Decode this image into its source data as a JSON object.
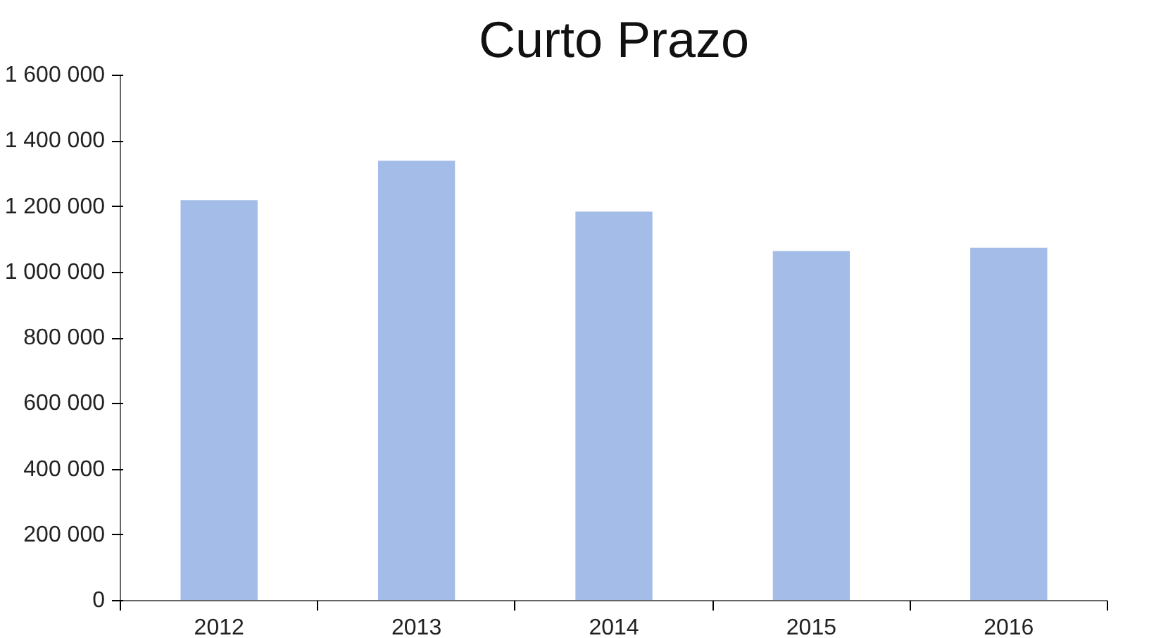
{
  "chart_data": {
    "type": "bar",
    "title": "Curto Prazo",
    "categories": [
      "2012",
      "2013",
      "2014",
      "2015",
      "2016"
    ],
    "values": [
      1220000,
      1340000,
      1185000,
      1065000,
      1075000
    ],
    "color": "#a4bce8",
    "ylim": [
      0,
      1600000
    ],
    "yticks": [
      0,
      {
        "value": 200000,
        "label": "200 000"
      },
      {
        "value": 400000,
        "label": "400 000"
      },
      {
        "value": 600000,
        "label": "600 000"
      },
      {
        "value": 800000,
        "label": "800 000"
      },
      {
        "value": 1000000,
        "label": "1 000 000"
      },
      {
        "value": 1200000,
        "label": "1 200 000"
      },
      {
        "value": 1400000,
        "label": "1 400 000"
      },
      {
        "value": 1600000,
        "label": "1 600 000"
      }
    ],
    "grid": false
  }
}
